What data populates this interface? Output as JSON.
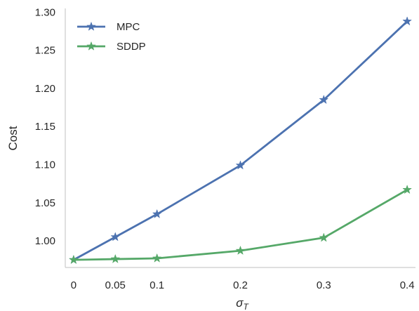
{
  "chart_data": {
    "type": "line",
    "x": [
      0,
      0.05,
      0.1,
      0.2,
      0.3,
      0.4
    ],
    "x_tick_labels": [
      "0",
      "0.05",
      "0.1",
      "0.2",
      "0.3",
      "0.4"
    ],
    "xlim": [
      -0.01,
      0.41
    ],
    "xlabel": "σ",
    "xlabel_subscript": "T",
    "ylabel": "Cost",
    "ylim": [
      0.965,
      1.305
    ],
    "y_ticks": [
      1.0,
      1.05,
      1.1,
      1.15,
      1.2,
      1.25,
      1.3
    ],
    "y_tick_labels": [
      "1.00",
      "1.05",
      "1.10",
      "1.15",
      "1.20",
      "1.25",
      "1.30"
    ],
    "grid": false,
    "legend_position": "top-left",
    "marker": "star",
    "series": [
      {
        "name": "MPC",
        "color": "#4c72b0",
        "values": [
          0.975,
          1.005,
          1.035,
          1.099,
          1.185,
          1.288
        ]
      },
      {
        "name": "SDDP",
        "color": "#55a868",
        "values": [
          0.975,
          0.976,
          0.977,
          0.987,
          1.004,
          1.067
        ]
      }
    ]
  }
}
